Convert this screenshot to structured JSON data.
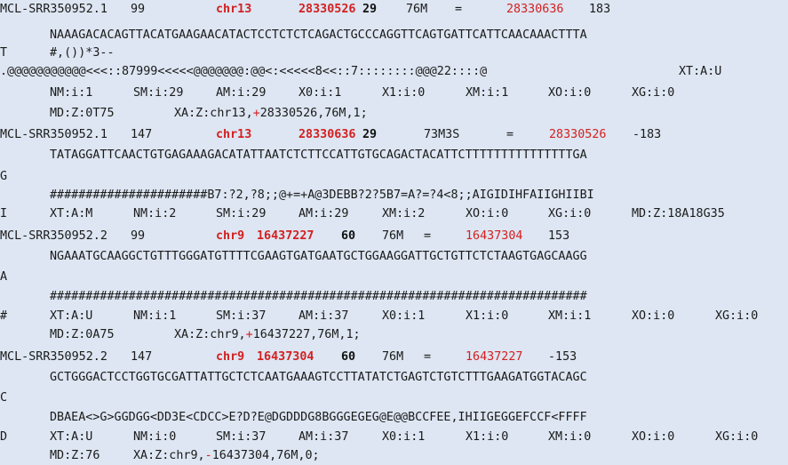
{
  "records": [
    {
      "qname": "MCL-SRR350952.1",
      "flag": "99",
      "rname": "chr13",
      "pos": "28330526",
      "mapq": "29",
      "cigar": "76M",
      "rnext": "=",
      "pnext": "28330636",
      "tlen": "183",
      "seq_a": "NAAAGACACAGTTACATGAAGAACATACTCCTCTCTCAGACTGCCCAGGTTCAGTGATTCATTCAACAAACTTTA",
      "seq_b": "T",
      "qual_a": "#,())*3--",
      "qual_b": ".@@@@@@@@@@@<<<::87999<<<<<@@@@@@@:@@<:<<<<<8<<::7::::::::@@@22::::@",
      "tags_a": [
        "XT:A:U"
      ],
      "tags_b": [
        "NM:i:1",
        "SM:i:29",
        "AM:i:29",
        "X0:i:1",
        "X1:i:0",
        "XM:i:1",
        "XO:i:0",
        "XG:i:0"
      ],
      "md": "MD:Z:0T75",
      "xa_prefix": "XA:Z:chr13,",
      "xa_sign": "+",
      "xa_rest": "28330526,76M,1;"
    },
    {
      "qname": "MCL-SRR350952.1",
      "flag": "147",
      "rname": "chr13",
      "pos": "28330636",
      "mapq": "29",
      "cigar": "73M3S",
      "rnext": "=",
      "pnext": "28330526",
      "tlen": "-183",
      "seq_a": "TATAGGATTCAACTGTGAGAAAGACATATTAATCTCTTCCATTGTGCAGACTACATTCTTTTTTTTTTTTTTTGA",
      "seq_b": "G",
      "qual_a": "######################B7:?2,?8;;@+=+A@3DEBB?2?5B7=A?=?4<8;;AIGIDIHFAIIGHIIBI",
      "qual_b": "I",
      "tags": [
        "XT:A:M",
        "NM:i:2",
        "SM:i:29",
        "AM:i:29",
        "XM:i:2",
        "XO:i:0",
        "XG:i:0",
        "MD:Z:18A18G35"
      ]
    },
    {
      "qname": "MCL-SRR350952.2",
      "flag": "99",
      "rname": "chr9",
      "pos": "16437227",
      "mapq": "60",
      "cigar": "76M",
      "rnext": "=",
      "pnext": "16437304",
      "tlen": "153",
      "seq_a": "NGAAATGCAAGGCTGTTTGGGATGTTTTCGAAGTGATGAATGCTGGAAGGATTGCTGTTCTCTAAGTGAGCAAGG",
      "seq_b": "A",
      "qual_a": "###########################################################################",
      "qual_b": "#",
      "tags": [
        "XT:A:U",
        "NM:i:1",
        "SM:i:37",
        "AM:i:37",
        "X0:i:1",
        "X1:i:0",
        "XM:i:1",
        "XO:i:0",
        "XG:i:0"
      ],
      "md": "MD:Z:0A75",
      "xa_prefix": "XA:Z:chr9,",
      "xa_sign": "+",
      "xa_rest": "16437227,76M,1;"
    },
    {
      "qname": "MCL-SRR350952.2",
      "flag": "147",
      "rname": "chr9",
      "pos": "16437304",
      "mapq": "60",
      "cigar": "76M",
      "rnext": "=",
      "pnext": "16437227",
      "tlen": "-153",
      "seq_a": "GCTGGGACTCCTGGTGCGATTATTGCTCTCAATGAAAGTCCTTATATCTGAGTCTGTCTTTGAAGATGGTACAGC",
      "seq_b": "C",
      "qual_a": "DBAEA<>G>GGDGG<DD3E<CDCC>E?D?E@DGDDDG8BGGGEGEG@E@@BCCFEE,IHIIGEGGEFCCF<FFFF",
      "qual_b": "D",
      "tags": [
        "XT:A:U",
        "NM:i:0",
        "SM:i:37",
        "AM:i:37",
        "X0:i:1",
        "X1:i:0",
        "XM:i:0",
        "XO:i:0",
        "XG:i:0"
      ],
      "md": "MD:Z:76",
      "xa_prefix": "XA:Z:chr9,",
      "xa_sign": "-",
      "xa_rest": "16437304,76M,0;"
    }
  ]
}
